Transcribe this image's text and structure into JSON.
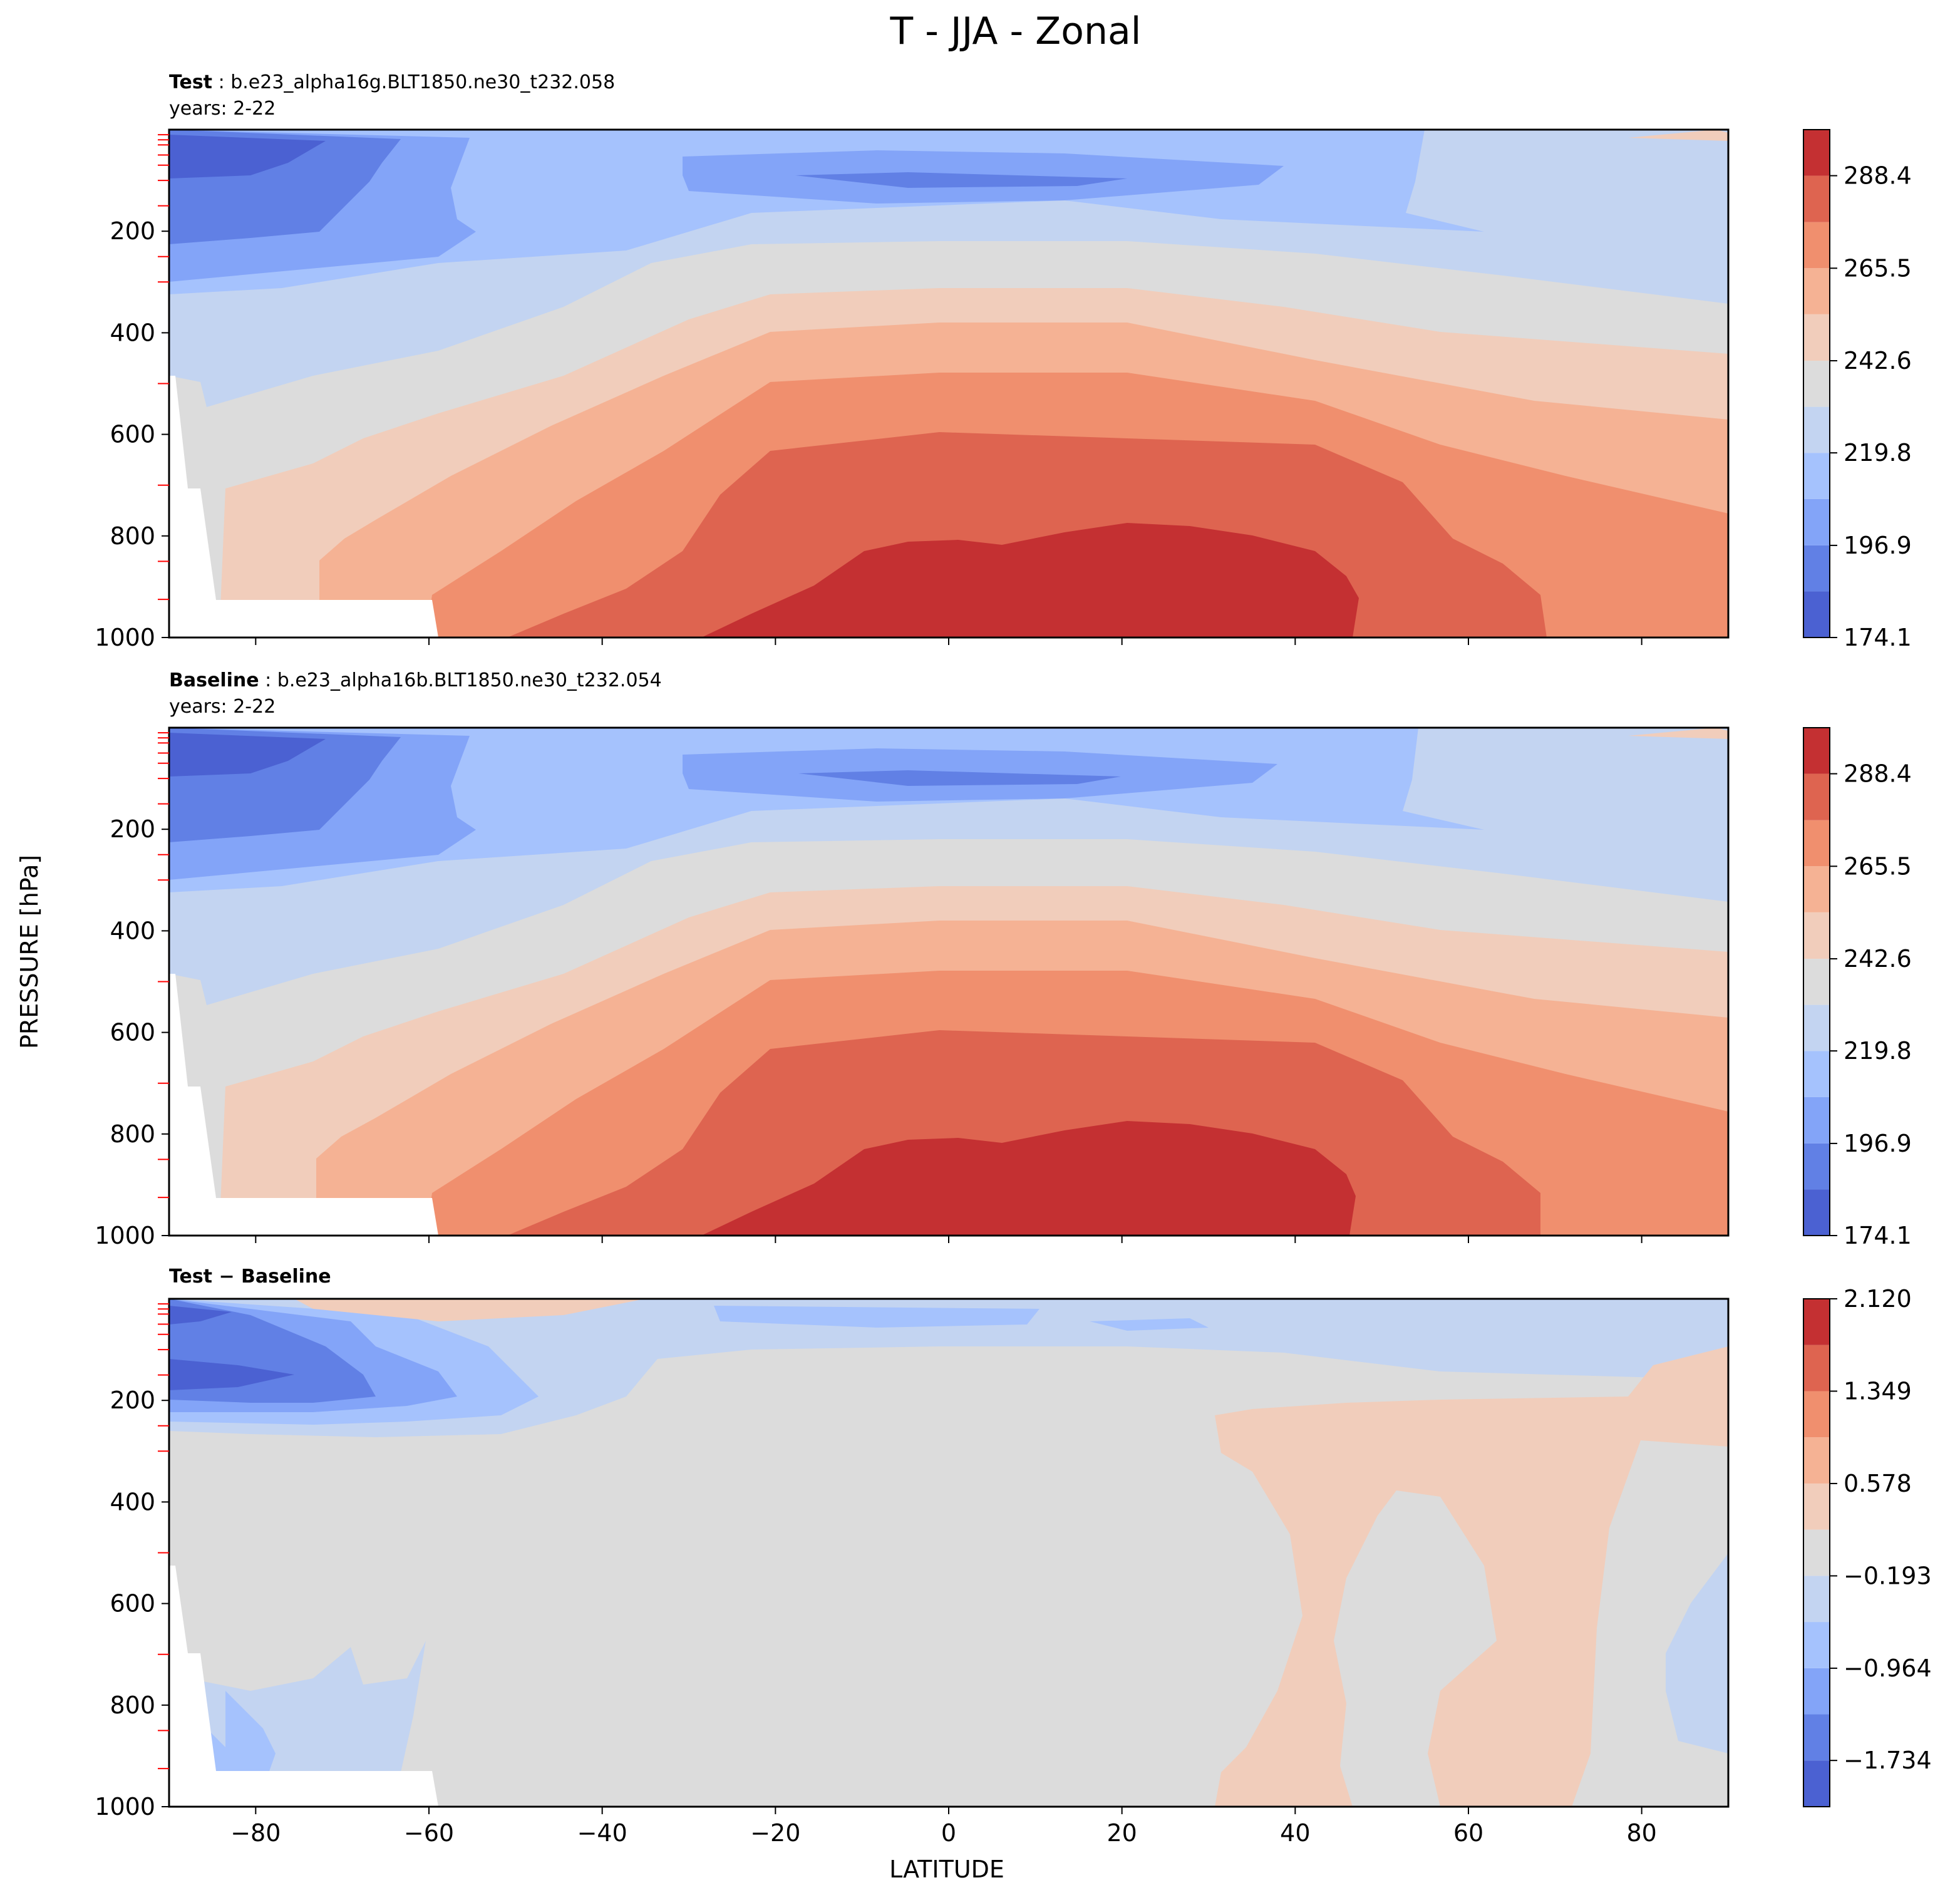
{
  "figure": {
    "suptitle": "T - JJA - Zonal",
    "xlabel": "LATITUDE",
    "ylabel": "PRESSURE [hPa]"
  },
  "panels": [
    {
      "id": "test",
      "title_bold": "Test",
      "title_rest": " : b.e23_alpha16g.BLT1850.ne30_t232.058",
      "subtitle": "years: 2-22",
      "cbar_ticks": [
        "288.4",
        "265.5",
        "242.6",
        "219.8",
        "196.9",
        "174.1"
      ]
    },
    {
      "id": "baseline",
      "title_bold": "Baseline",
      "title_rest": " : b.e23_alpha16b.BLT1850.ne30_t232.054",
      "subtitle": "years: 2-22",
      "cbar_ticks": [
        "288.4",
        "265.5",
        "242.6",
        "219.8",
        "196.9",
        "174.1"
      ]
    },
    {
      "id": "diff",
      "title_bold": "Test − Baseline",
      "title_rest": "",
      "subtitle": "",
      "cbar_ticks": [
        "2.120",
        "1.349",
        "0.578",
        "−0.193",
        "−0.964",
        "−1.734"
      ]
    }
  ],
  "chart_data": [
    {
      "type": "heatmap",
      "panel": "test",
      "title": "Test : b.e23_alpha16g.BLT1850.ne30_t232.058",
      "subtitle": "years: 2-22",
      "xlabel": "LATITUDE",
      "ylabel": "PRESSURE [hPa]",
      "xlim": [
        -90,
        90
      ],
      "ylim": [
        1000,
        0
      ],
      "y_inverted": true,
      "x_ticks": [
        -80,
        -60,
        -40,
        -20,
        0,
        20,
        40,
        60,
        80
      ],
      "y_ticks": [
        200,
        400,
        600,
        800,
        1000
      ],
      "colormap": "coolwarm",
      "levels": [
        174.1,
        185.5,
        196.9,
        208.4,
        219.8,
        231.2,
        242.6,
        254.1,
        265.5,
        276.9,
        288.4,
        299.8
      ],
      "colorbar_ticks": [
        174.1,
        196.9,
        219.8,
        242.6,
        265.5,
        288.4
      ],
      "features": {
        "max_region": "near-surface 20S-45N, above ~290 K",
        "min_region": "upper levels near 70-90S, below ~185 K"
      }
    },
    {
      "type": "heatmap",
      "panel": "baseline",
      "title": "Baseline : b.e23_alpha16b.BLT1850.ne30_t232.054",
      "subtitle": "years: 2-22",
      "xlabel": "LATITUDE",
      "ylabel": "PRESSURE [hPa]",
      "xlim": [
        -90,
        90
      ],
      "ylim": [
        1000,
        0
      ],
      "y_inverted": true,
      "x_ticks": [
        -80,
        -60,
        -40,
        -20,
        0,
        20,
        40,
        60,
        80
      ],
      "y_ticks": [
        200,
        400,
        600,
        800,
        1000
      ],
      "colormap": "coolwarm",
      "levels": [
        174.1,
        185.5,
        196.9,
        208.4,
        219.8,
        231.2,
        242.6,
        254.1,
        265.5,
        276.9,
        288.4,
        299.8
      ],
      "colorbar_ticks": [
        174.1,
        196.9,
        219.8,
        242.6,
        265.5,
        288.4
      ]
    },
    {
      "type": "heatmap",
      "panel": "diff",
      "title": "Test − Baseline",
      "xlabel": "LATITUDE",
      "ylabel": "PRESSURE [hPa]",
      "xlim": [
        -90,
        90
      ],
      "ylim": [
        1000,
        0
      ],
      "y_inverted": true,
      "x_ticks": [
        -80,
        -60,
        -40,
        -20,
        0,
        20,
        40,
        60,
        80
      ],
      "y_ticks": [
        200,
        400,
        600,
        800,
        1000
      ],
      "colormap": "coolwarm",
      "levels": [
        -2.12,
        -1.734,
        -1.349,
        -0.964,
        -0.578,
        -0.193,
        0.193,
        0.578,
        0.964,
        1.349,
        1.734,
        2.12
      ],
      "colorbar_ticks": [
        -1.734,
        -0.964,
        -0.193,
        0.578,
        1.349,
        2.12
      ],
      "features": {
        "negative_region": "upper levels 60-90S, down to about -1.7",
        "positive_region": "40-65N near surface up to ~250 hPa, about +0.2 to +0.6"
      }
    }
  ],
  "colors": {
    "c0": "#4b61d2",
    "c1": "#6180e5",
    "c2": "#83a4f8",
    "c3": "#a5c2fd",
    "c4": "#c3d4f1",
    "c5": "#dcdcdc",
    "c6": "#f1cdbb",
    "c7": "#f5b294",
    "c8": "#f08f6e",
    "c9": "#de6450",
    "c10": "#c43032",
    "tick_marks": "#ff0000"
  }
}
